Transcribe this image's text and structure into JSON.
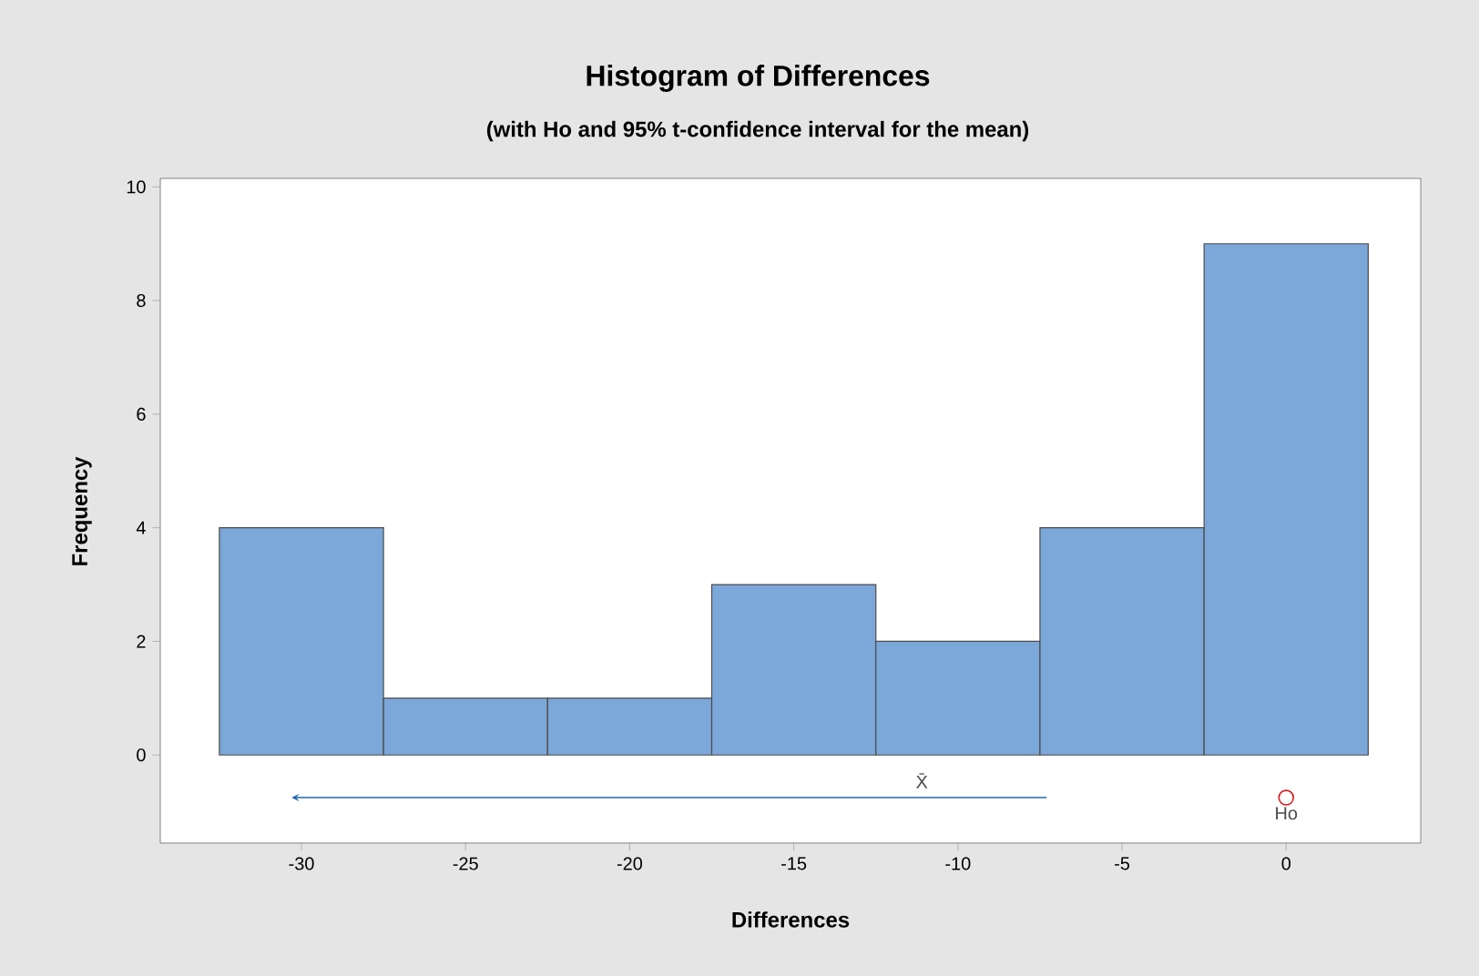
{
  "chart_data": {
    "type": "histogram",
    "title": "Histogram of Differences",
    "subtitle": "(with Ho and 95% t-confidence interval for the mean)",
    "xlabel": "Differences",
    "ylabel": "Frequency",
    "bins": [
      -32.5,
      -27.5,
      -22.5,
      -17.5,
      -12.5,
      -7.5,
      -2.5,
      2.5
    ],
    "values": [
      4,
      1,
      1,
      3,
      2,
      4,
      9
    ],
    "color": "#7ba7d9",
    "series": [
      {
        "type": "line",
        "x": [
          -30.3,
          -7.3
        ],
        "values": [
          -0.75,
          -0.75
        ],
        "color": "#2166ac"
      },
      {
        "type": "scatter",
        "x": [
          0
        ],
        "values": [
          -0.75
        ],
        "color": "#d7191c",
        "marker": "circle"
      }
    ],
    "annotations": [
      {
        "text": "X̄",
        "x": -11.1,
        "y": -0.75
      },
      {
        "text": "Ho",
        "x": 0,
        "y": -0.75
      }
    ],
    "xlim": [
      -34.3,
      4.1
    ],
    "ylim": [
      -1.55,
      10.15
    ],
    "xticks": [
      -30,
      -25,
      -20,
      -15,
      -10,
      -5,
      0
    ],
    "yticks": [
      0,
      2,
      4,
      6,
      8,
      10
    ],
    "grid": false
  }
}
